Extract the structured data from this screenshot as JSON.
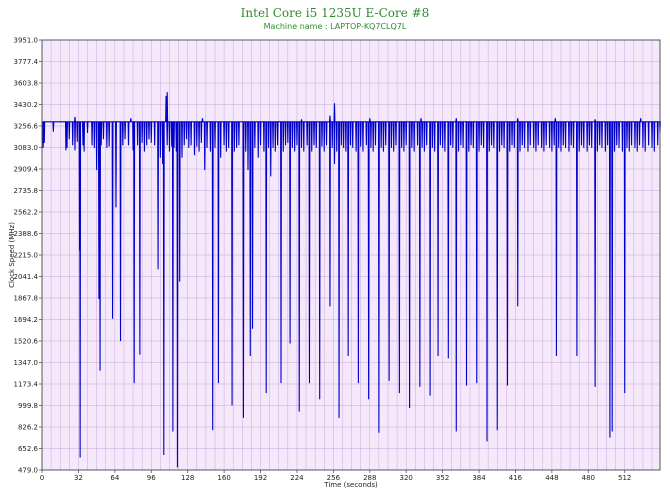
{
  "chart_data": {
    "type": "line",
    "title": "Intel Core i5 1235U E-Core #8",
    "subtitle": "Machine name : LAPTOP-KQ7CLQ7L",
    "xlabel": "Time (seconds)",
    "ylabel": "Clock Speed (MHz)",
    "xlim": [
      0,
      543
    ],
    "ylim": [
      479.0,
      3951.0
    ],
    "x_ticks": [
      0,
      32,
      64,
      96,
      128,
      160,
      192,
      224,
      256,
      288,
      320,
      352,
      384,
      416,
      448,
      480,
      512
    ],
    "y_ticks": [
      479.0,
      652.6,
      826.2,
      999.8,
      1173.4,
      1347.0,
      1520.6,
      1694.2,
      1867.8,
      2041.4,
      2215.0,
      2388.6,
      2562.2,
      2735.8,
      2909.4,
      3083.0,
      3256.6,
      3430.2,
      3603.8,
      3777.4,
      3951.0
    ],
    "grid": true,
    "colors": {
      "line": "#0000c8",
      "plot_bg": "#f6e8fb",
      "grid": "#c8a8d8",
      "title": "#2e8b2e"
    },
    "baseline_mhz": 3290,
    "sample_interval_s": 0.5,
    "series": [
      {
        "name": "",
        "dips": [
          [
            1,
            3080
          ],
          [
            2,
            3120
          ],
          [
            10,
            3210
          ],
          [
            21,
            3060
          ],
          [
            22,
            3080
          ],
          [
            24,
            3150
          ],
          [
            27,
            3100
          ],
          [
            29,
            3060
          ],
          [
            31,
            3130
          ],
          [
            33,
            2250
          ],
          [
            33.5,
            580
          ],
          [
            36,
            3100
          ],
          [
            37,
            3050
          ],
          [
            40,
            3200
          ],
          [
            44,
            3100
          ],
          [
            46,
            3080
          ],
          [
            48,
            2900
          ],
          [
            50,
            1860
          ],
          [
            51,
            1280
          ],
          [
            52,
            3100
          ],
          [
            54,
            3150
          ],
          [
            57,
            3080
          ],
          [
            59,
            3090
          ],
          [
            62,
            1700
          ],
          [
            65,
            2600
          ],
          [
            69,
            1520
          ],
          [
            71,
            3100
          ],
          [
            73,
            3150
          ],
          [
            76,
            3100
          ],
          [
            80,
            3060
          ],
          [
            81,
            1180
          ],
          [
            84,
            3100
          ],
          [
            86,
            1410
          ],
          [
            88,
            3120
          ],
          [
            90,
            3050
          ],
          [
            92,
            3100
          ],
          [
            94,
            3150
          ],
          [
            96,
            3120
          ],
          [
            99,
            3100
          ],
          [
            102,
            2100
          ],
          [
            104,
            3000
          ],
          [
            106,
            2950
          ],
          [
            107,
            600
          ],
          [
            110,
            3100
          ],
          [
            112,
            3050
          ],
          [
            114,
            3090
          ],
          [
            115,
            790
          ],
          [
            116,
            3080
          ],
          [
            118,
            3050
          ],
          [
            119,
            500
          ],
          [
            121,
            2000
          ],
          [
            123,
            3000
          ],
          [
            125,
            3100
          ],
          [
            127,
            3150
          ],
          [
            129,
            3080
          ],
          [
            131,
            3100
          ],
          [
            134,
            3020
          ],
          [
            136,
            3090
          ],
          [
            138,
            3050
          ],
          [
            140,
            3120
          ],
          [
            143,
            2900
          ],
          [
            145,
            3080
          ],
          [
            148,
            3050
          ],
          [
            150,
            800
          ],
          [
            152,
            3080
          ],
          [
            155,
            1180
          ],
          [
            157,
            3000
          ],
          [
            160,
            3100
          ],
          [
            162,
            3050
          ],
          [
            164,
            3080
          ],
          [
            167,
            1000
          ],
          [
            169,
            3050
          ],
          [
            171,
            3080
          ],
          [
            173,
            3100
          ],
          [
            177,
            900
          ],
          [
            179,
            3050
          ],
          [
            181,
            2900
          ],
          [
            183,
            1400
          ],
          [
            185,
            1620
          ],
          [
            187,
            3080
          ],
          [
            190,
            3000
          ],
          [
            192,
            3100
          ],
          [
            195,
            3050
          ],
          [
            197,
            1100
          ],
          [
            199,
            3080
          ],
          [
            201,
            2850
          ],
          [
            203,
            3080
          ],
          [
            205,
            3050
          ],
          [
            207,
            3100
          ],
          [
            210,
            1180
          ],
          [
            212,
            3050
          ],
          [
            214,
            3100
          ],
          [
            216,
            3120
          ],
          [
            218,
            1500
          ],
          [
            220,
            3080
          ],
          [
            222,
            3050
          ],
          [
            224,
            3100
          ],
          [
            226,
            950
          ],
          [
            228,
            3080
          ],
          [
            230,
            3050
          ],
          [
            233,
            3100
          ],
          [
            235,
            1180
          ],
          [
            237,
            3050
          ],
          [
            239,
            3100
          ],
          [
            241,
            3080
          ],
          [
            244,
            1050
          ],
          [
            246,
            3090
          ],
          [
            248,
            3050
          ],
          [
            250,
            3100
          ],
          [
            253,
            1800
          ],
          [
            255,
            3080
          ],
          [
            257,
            2950
          ],
          [
            259,
            3050
          ],
          [
            261,
            900
          ],
          [
            263,
            3100
          ],
          [
            265,
            3080
          ],
          [
            267,
            3050
          ],
          [
            269,
            1400
          ],
          [
            271,
            3100
          ],
          [
            273,
            3080
          ],
          [
            276,
            3050
          ],
          [
            278,
            1180
          ],
          [
            280,
            3090
          ],
          [
            282,
            3050
          ],
          [
            285,
            3100
          ],
          [
            287,
            1050
          ],
          [
            289,
            3080
          ],
          [
            291,
            3050
          ],
          [
            293,
            3100
          ],
          [
            296,
            780
          ],
          [
            298,
            3080
          ],
          [
            300,
            3050
          ],
          [
            302,
            3100
          ],
          [
            305,
            1200
          ],
          [
            307,
            3080
          ],
          [
            309,
            3050
          ],
          [
            311,
            3100
          ],
          [
            314,
            1100
          ],
          [
            316,
            3080
          ],
          [
            318,
            3050
          ],
          [
            320,
            3100
          ],
          [
            323,
            980
          ],
          [
            325,
            3080
          ],
          [
            327,
            3050
          ],
          [
            330,
            3100
          ],
          [
            332,
            1150
          ],
          [
            334,
            3080
          ],
          [
            336,
            3050
          ],
          [
            338,
            3100
          ],
          [
            341,
            1080
          ],
          [
            343,
            3080
          ],
          [
            345,
            3050
          ],
          [
            348,
            1400
          ],
          [
            350,
            3100
          ],
          [
            352,
            3080
          ],
          [
            354,
            3050
          ],
          [
            357,
            1380
          ],
          [
            359,
            3100
          ],
          [
            361,
            3080
          ],
          [
            364,
            790
          ],
          [
            366,
            3050
          ],
          [
            368,
            3100
          ],
          [
            370,
            3080
          ],
          [
            373,
            1160
          ],
          [
            375,
            3050
          ],
          [
            377,
            3100
          ],
          [
            379,
            3080
          ],
          [
            382,
            1180
          ],
          [
            384,
            3050
          ],
          [
            386,
            3100
          ],
          [
            388,
            3080
          ],
          [
            391,
            710
          ],
          [
            393,
            3050
          ],
          [
            395,
            3100
          ],
          [
            397,
            3080
          ],
          [
            400,
            800
          ],
          [
            402,
            3050
          ],
          [
            404,
            3100
          ],
          [
            406,
            3080
          ],
          [
            409,
            1160
          ],
          [
            411,
            3050
          ],
          [
            413,
            3100
          ],
          [
            415,
            3080
          ],
          [
            418,
            1800
          ],
          [
            420,
            3050
          ],
          [
            422,
            3100
          ],
          [
            424,
            3080
          ],
          [
            427,
            3050
          ],
          [
            429,
            3100
          ],
          [
            432,
            3080
          ],
          [
            434,
            3050
          ],
          [
            436,
            3100
          ],
          [
            439,
            3080
          ],
          [
            441,
            3050
          ],
          [
            443,
            3100
          ],
          [
            446,
            3080
          ],
          [
            448,
            3050
          ],
          [
            450,
            3100
          ],
          [
            452,
            1400
          ],
          [
            454,
            3080
          ],
          [
            456,
            3050
          ],
          [
            458,
            3100
          ],
          [
            460,
            3080
          ],
          [
            463,
            3050
          ],
          [
            465,
            3100
          ],
          [
            467,
            3080
          ],
          [
            470,
            1400
          ],
          [
            472,
            3050
          ],
          [
            474,
            3100
          ],
          [
            476,
            3080
          ],
          [
            479,
            3050
          ],
          [
            481,
            3100
          ],
          [
            483,
            3080
          ],
          [
            486,
            1150
          ],
          [
            488,
            3050
          ],
          [
            490,
            3100
          ],
          [
            492,
            3080
          ],
          [
            495,
            3050
          ],
          [
            497,
            3100
          ],
          [
            499,
            740
          ],
          [
            501,
            790
          ],
          [
            503,
            3050
          ],
          [
            505,
            3100
          ],
          [
            507,
            3080
          ],
          [
            510,
            3050
          ],
          [
            512,
            1100
          ],
          [
            514,
            3080
          ],
          [
            516,
            3050
          ],
          [
            518,
            3100
          ],
          [
            521,
            3080
          ],
          [
            523,
            3050
          ],
          [
            525,
            3100
          ],
          [
            528,
            3080
          ],
          [
            530,
            3050
          ],
          [
            533,
            3100
          ],
          [
            536,
            3080
          ],
          [
            538,
            3050
          ],
          [
            541,
            3100
          ],
          [
            543,
            3200
          ]
        ],
        "spikes": [
          [
            29,
            3330
          ],
          [
            78,
            3320
          ],
          [
            109,
            3500
          ],
          [
            110,
            3530
          ],
          [
            141,
            3320
          ],
          [
            228,
            3310
          ],
          [
            253,
            3340
          ],
          [
            257,
            3440
          ],
          [
            288,
            3320
          ],
          [
            333,
            3320
          ],
          [
            364,
            3320
          ],
          [
            418,
            3320
          ],
          [
            451,
            3320
          ],
          [
            486,
            3310
          ],
          [
            526,
            3320
          ]
        ]
      }
    ]
  }
}
